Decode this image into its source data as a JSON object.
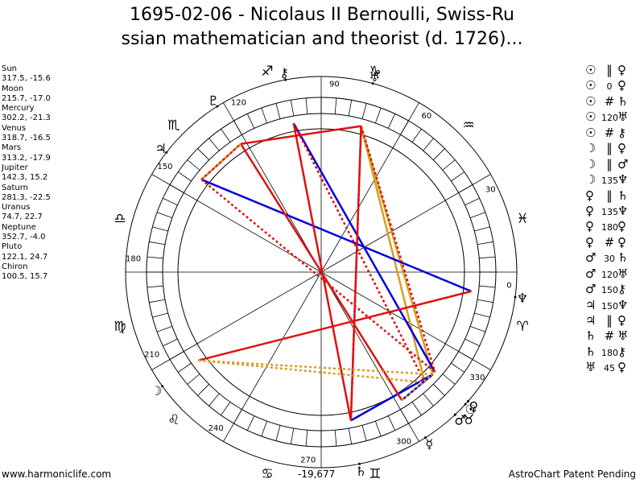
{
  "title": {
    "line1": "1695-02-06 - Nicolaus II Bernoulli, Swiss-Ru",
    "line2": "ssian mathematician and theorist (d. 1726)..."
  },
  "planets": [
    {
      "name": "Sun",
      "coords": "317.5, -15.6"
    },
    {
      "name": "Moon",
      "coords": "215.7, -17.0"
    },
    {
      "name": "Mercury",
      "coords": "302.2, -21.3"
    },
    {
      "name": "Venus",
      "coords": "318.7, -16.5"
    },
    {
      "name": "Mars",
      "coords": "313.2, -17.9"
    },
    {
      "name": "Jupiter",
      "coords": "142.3, 15.2"
    },
    {
      "name": "Saturn",
      "coords": "281.3, -22.5"
    },
    {
      "name": "Uranus",
      "coords": "74.7, 22.7"
    },
    {
      "name": "Neptune",
      "coords": "352.7, -4.0"
    },
    {
      "name": "Pluto",
      "coords": "122.1, 24.7"
    },
    {
      "name": "Chiron",
      "coords": "100.5, 15.7"
    }
  ],
  "aspects": [
    {
      "g1": "☉",
      "sym": "‖",
      "g2": "♀"
    },
    {
      "g1": "☉",
      "sym": "0",
      "g2": "♀"
    },
    {
      "g1": "☉",
      "sym": "#",
      "g2": "♄"
    },
    {
      "g1": "☉",
      "sym": "120",
      "g2": "♅"
    },
    {
      "g1": "☉",
      "sym": "#",
      "g2": "⚷"
    },
    {
      "g1": "☽",
      "sym": "‖",
      "g2": "♀"
    },
    {
      "g1": "☽",
      "sym": "‖",
      "g2": "♂"
    },
    {
      "g1": "☽",
      "sym": "135",
      "g2": "♆"
    },
    {
      "g1": "♀",
      "sym": "‖",
      "g2": "♄"
    },
    {
      "g1": "♀",
      "sym": "135",
      "g2": "♆"
    },
    {
      "g1": "♀",
      "sym": "180",
      "g2": "♀"
    },
    {
      "g1": "♀",
      "sym": "#",
      "g2": "♀"
    },
    {
      "g1": "♂",
      "sym": "30",
      "g2": "♄"
    },
    {
      "g1": "♂",
      "sym": "120",
      "g2": "♅"
    },
    {
      "g1": "♂",
      "sym": "150",
      "g2": "⚷"
    },
    {
      "g1": "♃",
      "sym": "150",
      "g2": "♆"
    },
    {
      "g1": "♃",
      "sym": "‖",
      "g2": "♀"
    },
    {
      "g1": "♄",
      "sym": "#",
      "g2": "♅"
    },
    {
      "g1": "♄",
      "sym": "180",
      "g2": "⚷"
    },
    {
      "g1": "♅",
      "sym": "45",
      "g2": "♀"
    }
  ],
  "wheel": {
    "degree_labels": [
      "0",
      "30",
      "60",
      "90",
      "120",
      "150",
      "180",
      "210",
      "240",
      "270",
      "300",
      "330"
    ],
    "sign_glyphs": [
      "♓",
      "♒",
      "♑",
      "♐",
      "♏",
      "♎",
      "♍",
      "♌",
      "♋",
      "♊",
      "♉",
      "♈"
    ],
    "planet_glyphs": [
      {
        "glyph": "☉",
        "lon": 317.5
      },
      {
        "glyph": "☽",
        "lon": 215.7
      },
      {
        "glyph": "☿",
        "lon": 302.2
      },
      {
        "glyph": "♀",
        "lon": 318.7
      },
      {
        "glyph": "♂",
        "lon": 313.2
      },
      {
        "glyph": "♃",
        "lon": 142.3
      },
      {
        "glyph": "♄",
        "lon": 281.3
      },
      {
        "glyph": "♅",
        "lon": 74.7
      },
      {
        "glyph": "♆",
        "lon": 352.7
      },
      {
        "glyph": "♇",
        "lon": 122.1
      },
      {
        "glyph": "⚷",
        "lon": 100.5
      }
    ],
    "aspect_lines": [
      {
        "from": 317.5,
        "to": 74.7,
        "color": "#d4a020",
        "style": "solid"
      },
      {
        "from": 313.2,
        "to": 74.7,
        "color": "#d4a020",
        "style": "solid"
      },
      {
        "from": 352.7,
        "to": 142.3,
        "color": "#0000dd",
        "style": "solid"
      },
      {
        "from": 100.5,
        "to": 318.7,
        "color": "#0000dd",
        "style": "solid"
      },
      {
        "from": 302.2,
        "to": 317.5,
        "color": "#0000dd",
        "style": "solid"
      },
      {
        "from": 281.3,
        "to": 317.5,
        "color": "#0000dd",
        "style": "solid"
      },
      {
        "from": 74.7,
        "to": 122.1,
        "color": "#e01010",
        "style": "solid"
      },
      {
        "from": 122.1,
        "to": 142.3,
        "color": "#e01010",
        "style": "solid"
      },
      {
        "from": 100.5,
        "to": 281.3,
        "color": "#e01010",
        "style": "solid"
      },
      {
        "from": 122.1,
        "to": 302.2,
        "color": "#e01010",
        "style": "solid"
      },
      {
        "from": 215.7,
        "to": 352.7,
        "color": "#e01010",
        "style": "solid"
      },
      {
        "from": 74.7,
        "to": 281.3,
        "color": "#e01010",
        "style": "solid"
      },
      {
        "from": 142.3,
        "to": 318.7,
        "color": "#e01010",
        "style": "dotted"
      },
      {
        "from": 100.5,
        "to": 313.2,
        "color": "#e01010",
        "style": "dotted"
      },
      {
        "from": 74.7,
        "to": 281.3,
        "color": "#e01010",
        "style": "dotted"
      },
      {
        "from": 74.7,
        "to": 318.7,
        "color": "#e01010",
        "style": "dotted"
      },
      {
        "from": 122.1,
        "to": 142.3,
        "color": "#d4a020",
        "style": "dotted"
      },
      {
        "from": 215.7,
        "to": 313.2,
        "color": "#d4a020",
        "style": "dotted"
      },
      {
        "from": 215.7,
        "to": 317.5,
        "color": "#d4a020",
        "style": "dotted"
      },
      {
        "from": 302.2,
        "to": 318.7,
        "color": "#d4a020",
        "style": "dotted"
      }
    ],
    "colors": {
      "red": "#e01010",
      "blue": "#0000dd",
      "gold": "#d4a020",
      "ink": "#000000"
    }
  },
  "bottom_value": "-19,677",
  "footer": {
    "left": "www.harmoniclife.com",
    "right": "AstroChart Patent Pending"
  }
}
